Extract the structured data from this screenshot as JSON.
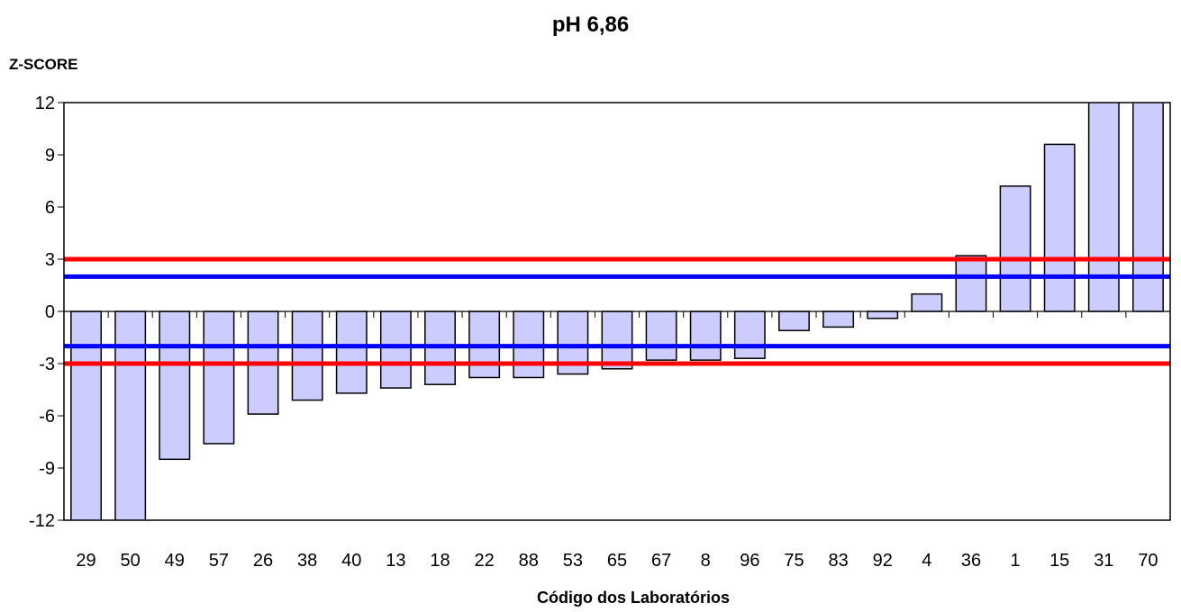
{
  "chart_data": {
    "type": "bar",
    "title": "pH 6,86",
    "ylabel": "Z-SCORE",
    "xlabel": "Código dos Laboratórios",
    "ylim": [
      -12,
      12
    ],
    "yticks": [
      12,
      9,
      6,
      3,
      0,
      -3,
      -6,
      -9,
      -12
    ],
    "grid": false,
    "categories": [
      "29",
      "50",
      "49",
      "57",
      "26",
      "38",
      "40",
      "13",
      "18",
      "22",
      "88",
      "53",
      "65",
      "67",
      "8",
      "96",
      "75",
      "83",
      "92",
      "4",
      "36",
      "1",
      "15",
      "31",
      "70"
    ],
    "values": [
      -12.5,
      -12.5,
      -8.5,
      -7.6,
      -5.9,
      -5.1,
      -4.7,
      -4.4,
      -4.2,
      -3.8,
      -3.8,
      -3.6,
      -3.3,
      -2.8,
      -2.8,
      -2.7,
      -1.1,
      -0.9,
      -0.4,
      1.0,
      3.2,
      7.2,
      9.6,
      12.5,
      12.5
    ],
    "bar_fill": "#ccccff",
    "bar_stroke": "#000000",
    "reference_lines": [
      {
        "value": 3,
        "color": "#ff0000"
      },
      {
        "value": 2,
        "color": "#0000ff"
      },
      {
        "value": -2,
        "color": "#0000ff"
      },
      {
        "value": -3,
        "color": "#ff0000"
      }
    ]
  }
}
